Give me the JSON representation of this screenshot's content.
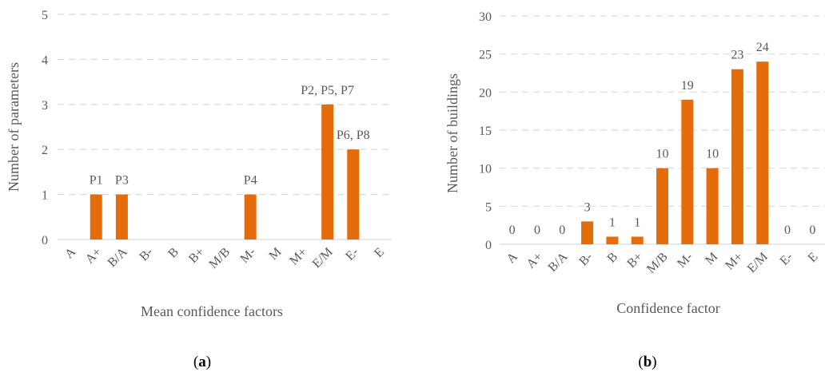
{
  "chart_data": [
    {
      "type": "bar",
      "panel_label": "a",
      "xlabel": "Mean confidence factors",
      "ylabel": "Number of parameters",
      "ylim": [
        0,
        5
      ],
      "yticks": [
        0,
        1,
        2,
        3,
        4,
        5
      ],
      "grid": true,
      "color": "#E46C0A",
      "categories": [
        "A",
        "A+",
        "B/A",
        "B-",
        "B",
        "B+",
        "M/B",
        "M-",
        "M",
        "M+",
        "E/M",
        "E-",
        "E"
      ],
      "values": [
        0,
        1,
        1,
        0,
        0,
        0,
        0,
        1,
        0,
        0,
        3,
        2,
        0
      ],
      "data_labels": [
        "",
        "P1",
        "P3",
        "",
        "",
        "",
        "",
        "P4",
        "",
        "",
        "P2, P5, P7",
        "P6, P8",
        ""
      ]
    },
    {
      "type": "bar",
      "panel_label": "b",
      "xlabel": "Confidence factor",
      "ylabel": "Number of buildings",
      "ylim": [
        0,
        30
      ],
      "yticks": [
        0,
        5,
        10,
        15,
        20,
        25,
        30
      ],
      "grid": true,
      "color": "#E46C0A",
      "categories": [
        "A",
        "A+",
        "B/A",
        "B-",
        "B",
        "B+",
        "M/B",
        "M-",
        "M",
        "M+",
        "E/M",
        "E-",
        "E"
      ],
      "values": [
        0,
        0,
        0,
        3,
        1,
        1,
        10,
        19,
        10,
        23,
        24,
        0,
        0
      ],
      "data_labels": [
        "0",
        "0",
        "0",
        "3",
        "1",
        "1",
        "10",
        "19",
        "10",
        "23",
        "24",
        "0",
        "0"
      ]
    }
  ]
}
